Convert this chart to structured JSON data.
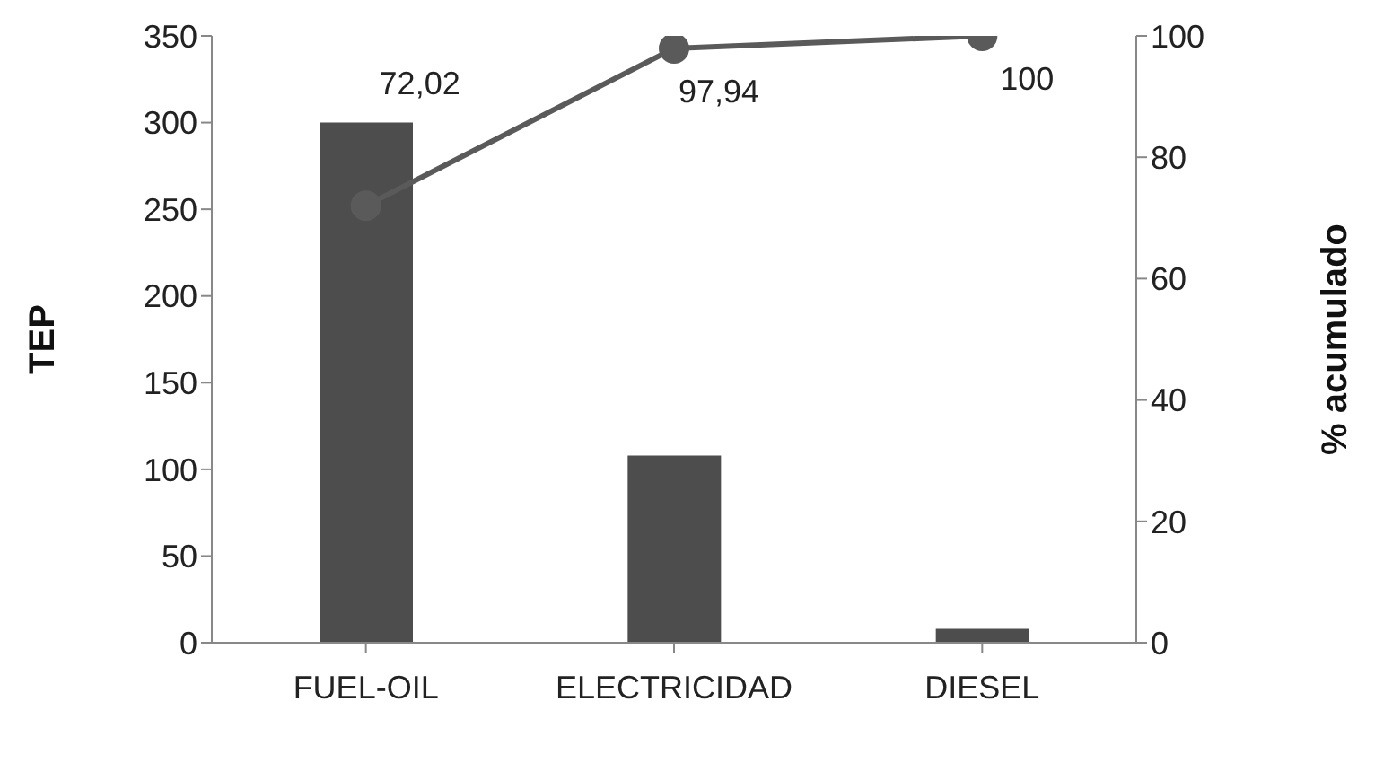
{
  "chart_data": {
    "type": "bar",
    "ylabel": "TEP",
    "y2label": "% acumulado",
    "categories": [
      "FUEL-OIL",
      "ELECTRICIDAD",
      "DIESEL"
    ],
    "series": [
      {
        "color": "#4d4d4d",
        "values": [
          300,
          108,
          8
        ]
      },
      {
        "type": "line",
        "axis": "y2",
        "color": "#5a5a5a",
        "marker": "circle",
        "values": [
          72.02,
          97.94,
          100
        ],
        "value_labels": [
          "72,02",
          "97,94",
          "100"
        ]
      }
    ],
    "ylim": [
      0,
      350
    ],
    "yticks": [
      0,
      50,
      100,
      150,
      200,
      250,
      300,
      350
    ],
    "y2lim": [
      0,
      100
    ],
    "y2ticks": [
      0,
      20,
      40,
      60,
      80,
      100
    ],
    "grid": false,
    "legend": false
  }
}
